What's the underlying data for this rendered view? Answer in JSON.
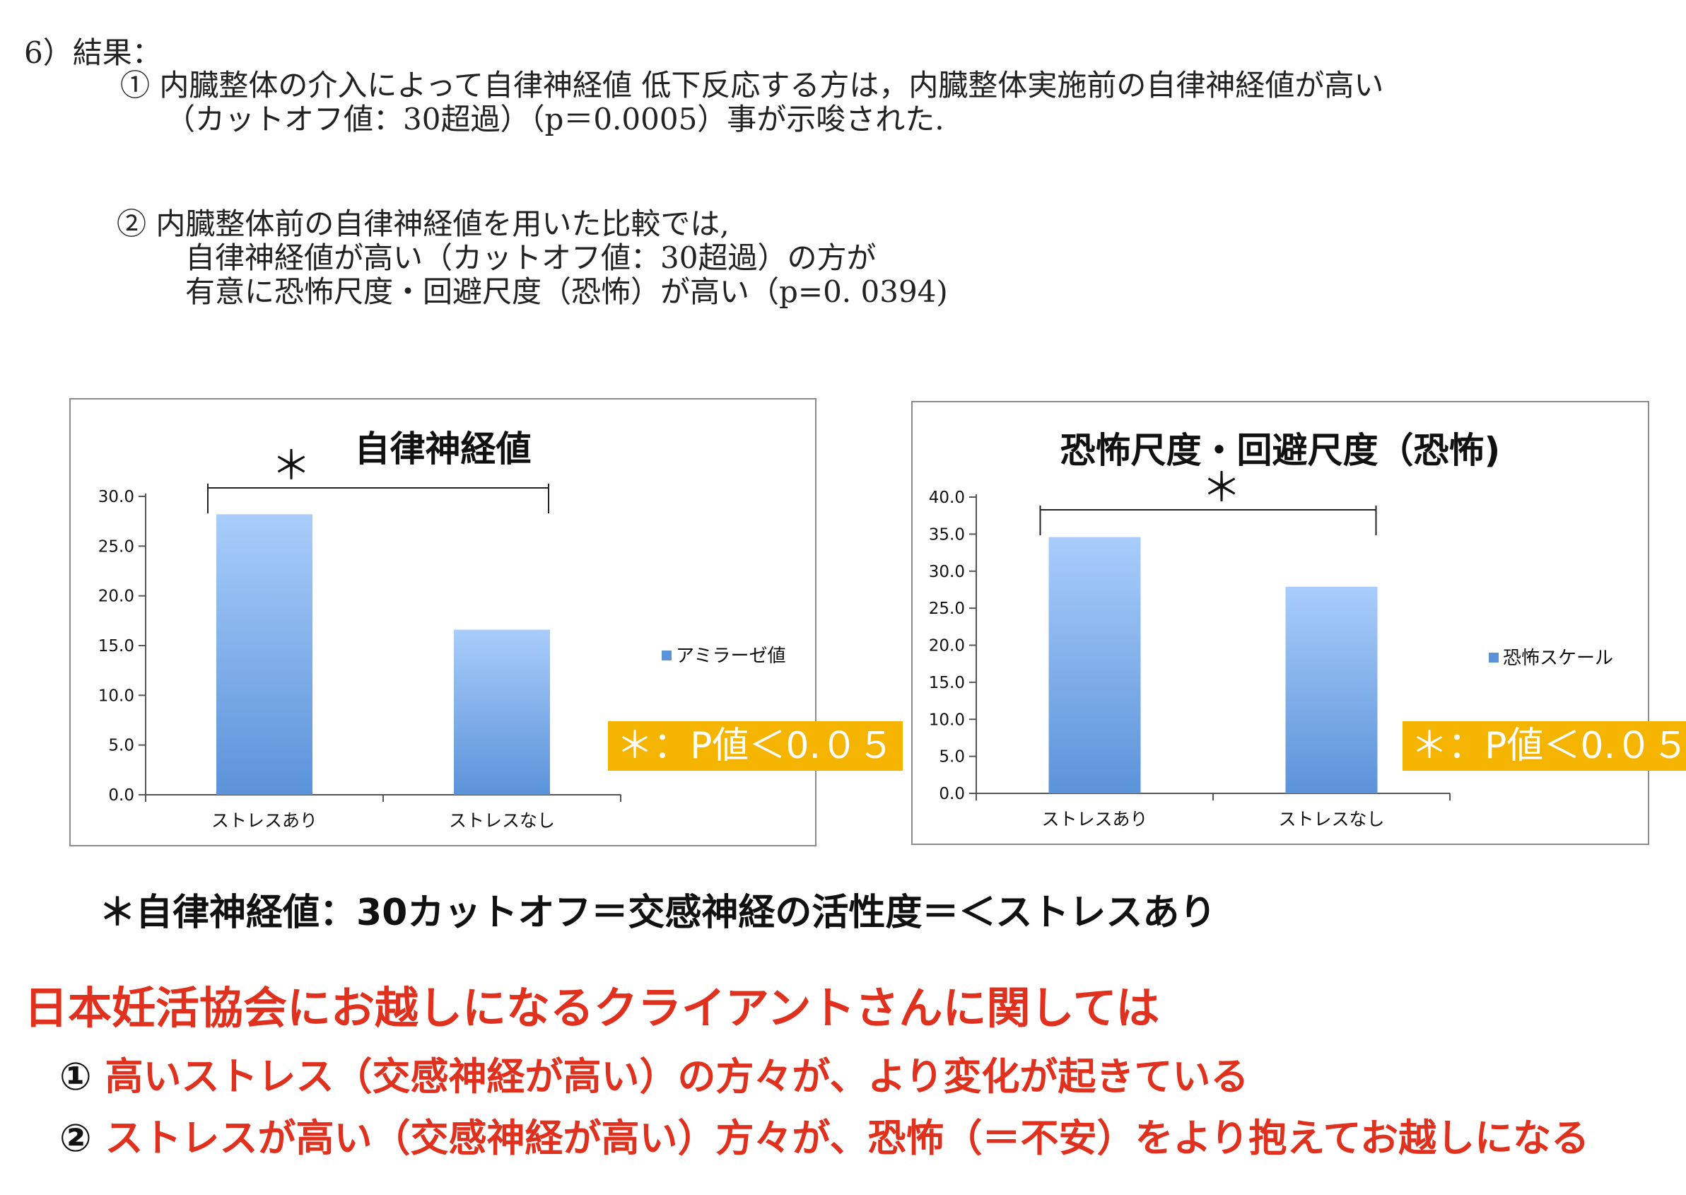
{
  "results": {
    "heading": "6）結果：",
    "item1_line1": "①  内臓整体の介入によって自律神経値 低下反応する方は，内臓整体実施前の自律神経値が高い",
    "item1_line2": "（カットオフ値：30超過）（p＝0.0005）事が示唆された.",
    "item2_line1": "②  内臓整体前の自律神経値を用いた比較では,",
    "item2_line2": "自律神経値が高い（カットオフ値：30超過）の方が",
    "item2_line3": "有意に恐怖尺度・回避尺度（恐怖）が高い（p=0. 0394)"
  },
  "chart_data": [
    {
      "type": "bar",
      "title": "自律神経値",
      "categories": [
        "ストレスあり",
        "ストレスなし"
      ],
      "series": [
        {
          "name": "アミラーゼ値",
          "values": [
            28.2,
            16.6
          ]
        }
      ],
      "ylim": [
        0,
        30
      ],
      "yticks": [
        "0.0",
        "5.0",
        "10.0",
        "15.0",
        "20.0",
        "25.0",
        "30.0"
      ],
      "significance_mark": "＊",
      "legend_position": "right",
      "grid": false
    },
    {
      "type": "bar",
      "title": "恐怖尺度・回避尺度（恐怖)",
      "categories": [
        "ストレスあり",
        "ストレスなし"
      ],
      "series": [
        {
          "name": "恐怖スケール",
          "values": [
            34.6,
            27.9
          ]
        }
      ],
      "ylim": [
        0,
        40
      ],
      "yticks": [
        "0.0",
        "5.0",
        "10.0",
        "15.0",
        "20.0",
        "25.0",
        "30.0",
        "35.0",
        "40.0"
      ],
      "significance_mark": "＊",
      "legend_position": "right",
      "grid": false
    }
  ],
  "sig_label": "＊：P値＜0.０５",
  "note": "＊自律神経値：30カットオフ＝交感神経の活性度＝＜ストレスあり",
  "conclusion": {
    "heading": "日本妊活協会にお越しになるクライアントさんに関しては",
    "point1_num": "①",
    "point1_text": "高いストレス（交感神経が高い）の方々が、より変化が起きている",
    "point2_num": "②",
    "point2_text": "ストレスが高い（交感神経が高い）方々が、恐怖（＝不安）をより抱えてお越しになる"
  },
  "colors": {
    "bar_top": "#a9cdfb",
    "bar_bottom": "#5b93d9",
    "sig_box": "#f5b400",
    "red": "#e0301e"
  }
}
